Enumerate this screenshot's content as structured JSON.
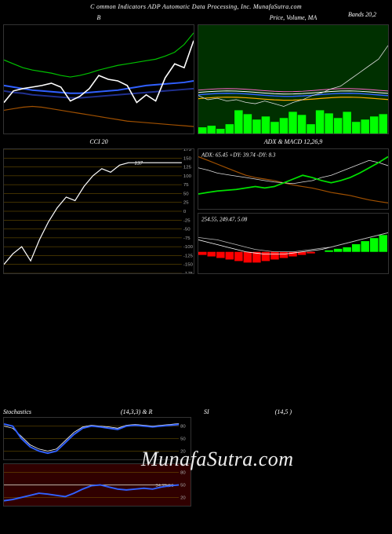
{
  "header": {
    "left": "C",
    "main": "ommon Indicators ADP Automatic Data Processing, Inc. MunafaSutra.com"
  },
  "watermark": "MunafaSutra.com",
  "panels": {
    "topLeft": {
      "title": "B",
      "bg": "#000000",
      "series": {
        "white": {
          "color": "#ffffff",
          "width": 1.6,
          "points": [
            40,
            55,
            58,
            60,
            62,
            65,
            60,
            42,
            48,
            58,
            75,
            70,
            68,
            62,
            40,
            50,
            42,
            72,
            90,
            85,
            120
          ]
        },
        "green": {
          "color": "#00c000",
          "width": 1.2,
          "points": [
            95,
            90,
            85,
            82,
            80,
            78,
            75,
            73,
            75,
            78,
            82,
            85,
            88,
            90,
            92,
            94,
            96,
            100,
            105,
            115,
            130
          ]
        },
        "blue": {
          "color": "#3060ff",
          "width": 2.0,
          "points": [
            62,
            60,
            58,
            56,
            55,
            54,
            53,
            52,
            52,
            53,
            54,
            55,
            56,
            58,
            60,
            62,
            63,
            64,
            65,
            66,
            68
          ]
        },
        "darkblue": {
          "color": "#203090",
          "width": 2.0,
          "points": [
            55,
            53,
            52,
            50,
            49,
            48,
            47,
            46,
            46,
            47,
            48,
            49,
            50,
            51,
            52,
            53,
            54,
            55,
            56,
            57,
            58
          ]
        },
        "brown": {
          "color": "#a05000",
          "width": 1.2,
          "points": [
            30,
            32,
            34,
            35,
            34,
            32,
            30,
            28,
            26,
            24,
            22,
            20,
            18,
            16,
            15,
            14,
            13,
            12,
            11,
            10,
            9
          ]
        }
      }
    },
    "topRight": {
      "title": "Price, Volume, MA",
      "bands_title": "Bands 20,2",
      "bg": "#003000",
      "price": {
        "color": "#dddddd",
        "width": 0.8,
        "points": [
          58,
          55,
          56,
          54,
          55,
          53,
          52,
          54,
          52,
          50,
          53,
          55,
          58,
          60,
          63,
          65,
          70,
          75,
          80,
          85,
          95
        ]
      },
      "ma_lines": [
        {
          "color": "#ff66cc",
          "width": 1,
          "y": 56
        },
        {
          "color": "#ffffff",
          "width": 1,
          "y": 53
        },
        {
          "color": "#3060ff",
          "width": 1.5,
          "y": 50
        },
        {
          "color": "#ffaa00",
          "width": 1.2,
          "y": 45
        }
      ],
      "volume": {
        "color": "#00ff00",
        "heights": [
          8,
          10,
          6,
          12,
          30,
          25,
          18,
          22,
          15,
          20,
          28,
          24,
          12,
          30,
          26,
          20,
          28,
          15,
          18,
          22,
          25
        ]
      }
    },
    "cci": {
      "title": "CCI 20",
      "ytick_start": -175,
      "ytick_end": 175,
      "ytick_step": 25,
      "annot_val": 137,
      "series": {
        "color": "#ffffff",
        "width": 1.2,
        "points": [
          -150,
          -120,
          -100,
          -140,
          -80,
          -30,
          10,
          40,
          30,
          70,
          100,
          120,
          110,
          130,
          137,
          137,
          137,
          137,
          137,
          137,
          137
        ]
      }
    },
    "adx": {
      "title": "ADX  & MACD 12,26,9",
      "text": "ADX: 65.45 +DY: 39.74 -DY: 8.3",
      "series": {
        "green": {
          "color": "#00e000",
          "width": 1.8,
          "points": [
            20,
            22,
            24,
            25,
            26,
            28,
            30,
            28,
            30,
            35,
            40,
            45,
            42,
            38,
            35,
            38,
            42,
            48,
            55,
            62,
            70
          ]
        },
        "white": {
          "color": "#dddddd",
          "width": 0.8,
          "points": [
            55,
            52,
            48,
            46,
            44,
            42,
            40,
            38,
            36,
            35,
            34,
            36,
            38,
            42,
            45,
            50,
            55,
            60,
            65,
            62,
            58
          ]
        },
        "brown": {
          "color": "#a05000",
          "width": 1.2,
          "points": [
            70,
            65,
            60,
            55,
            50,
            45,
            42,
            40,
            38,
            35,
            32,
            30,
            28,
            25,
            22,
            20,
            18,
            15,
            12,
            10,
            8
          ]
        }
      }
    },
    "macd": {
      "text": "254.55, 249.47, 5.08",
      "hist": {
        "pos_color": "#00ff00",
        "neg_color": "#ff0000",
        "vals": [
          -2,
          -3,
          -4,
          -5,
          -6,
          -7,
          -7,
          -6,
          -5,
          -4,
          -3,
          -2,
          -1,
          0,
          1,
          2,
          3,
          5,
          7,
          9,
          11
        ]
      },
      "lines": [
        {
          "color": "#ffffff",
          "width": 0.8,
          "points": [
            48,
            46,
            44,
            42,
            40,
            38,
            37,
            36,
            36,
            36,
            37,
            38,
            39,
            40,
            42,
            44,
            46,
            48,
            50,
            52,
            54
          ]
        },
        {
          "color": "#bbbbbb",
          "width": 0.8,
          "points": [
            50,
            49,
            48,
            46,
            44,
            42,
            40,
            39,
            38,
            38,
            38,
            39,
            40,
            41,
            42,
            44,
            46,
            48,
            50,
            52,
            54
          ]
        }
      ]
    },
    "stoch_top": {
      "title_left": "Stochastics",
      "title_params": "(14,3,3) & R",
      "ticks": [
        20,
        50,
        80
      ],
      "series": {
        "blue": {
          "color": "#3060ff",
          "width": 2,
          "points": [
            85,
            80,
            50,
            30,
            20,
            15,
            20,
            40,
            60,
            75,
            80,
            78,
            75,
            72,
            80,
            82,
            80,
            78,
            80,
            82,
            84
          ]
        },
        "white": {
          "color": "#ffffff",
          "width": 0.8,
          "points": [
            80,
            75,
            55,
            35,
            25,
            20,
            25,
            45,
            65,
            78,
            82,
            80,
            78,
            75,
            82,
            84,
            82,
            80,
            82,
            84,
            86
          ]
        }
      }
    },
    "stoch_bottom": {
      "bg": "#300000",
      "ticks": [
        20,
        50,
        80
      ],
      "annot": "34.25,50",
      "series": {
        "blue": {
          "color": "#3060ff",
          "width": 2,
          "points": [
            12,
            15,
            20,
            25,
            30,
            28,
            25,
            22,
            30,
            40,
            48,
            50,
            45,
            40,
            38,
            40,
            42,
            40,
            45,
            48,
            50
          ]
        },
        "white": {
          "color": "#dddddd",
          "width": 0.8,
          "points": [
            50,
            50,
            50,
            50,
            50,
            50,
            50,
            50,
            50,
            50,
            50,
            50,
            50,
            50,
            50,
            50,
            50,
            50,
            50,
            50,
            50
          ]
        }
      }
    },
    "rsi": {
      "title": "SI",
      "params": "(14,5                         )"
    }
  }
}
